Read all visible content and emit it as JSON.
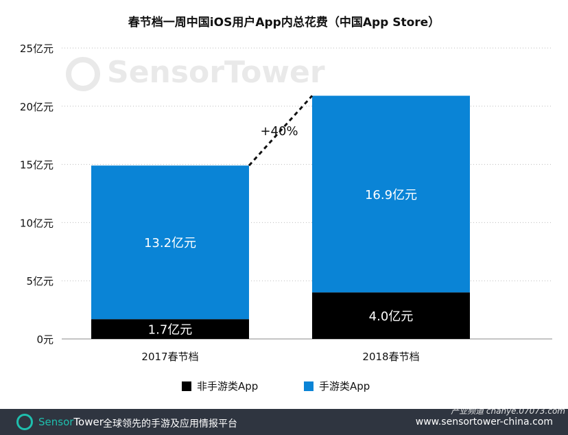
{
  "title": "春节档一周中国iOS用户App内总花费（中国App Store）",
  "watermark": {
    "brand": "SensorTower",
    "overlay": "产业频道 chanye.07073.com"
  },
  "colors": {
    "non_game": "#000000",
    "game": "#0a84d6",
    "grid": "#bbbbbb",
    "footer_bg": "#2f3540",
    "brand": "#1fbfae"
  },
  "chart_data": {
    "type": "bar",
    "stacked": true,
    "title": "春节档一周中国iOS用户App内总花费（中国App Store）",
    "categories": [
      "2017春节档",
      "2018春节档"
    ],
    "series": [
      {
        "name": "非手游类App",
        "values": [
          1.7,
          4.0
        ],
        "labels": [
          "1.7亿元",
          "4.0亿元"
        ]
      },
      {
        "name": "手游类App",
        "values": [
          13.2,
          16.9
        ],
        "labels": [
          "13.2亿元",
          "16.9亿元"
        ]
      }
    ],
    "ylim": [
      0,
      25
    ],
    "yticks": [
      0,
      5,
      10,
      15,
      20,
      25
    ],
    "ytick_labels": [
      "0元",
      "5亿元",
      "10亿元",
      "15亿元",
      "20亿元",
      "25亿元"
    ],
    "grid": true,
    "legend": "bottom",
    "annotation": "+40%"
  },
  "footer": {
    "brand_a": "Sensor",
    "brand_b": "Tower",
    "slogan": "全球领先的手游及应用情报平台",
    "url": "www.sensortower-china.com"
  }
}
